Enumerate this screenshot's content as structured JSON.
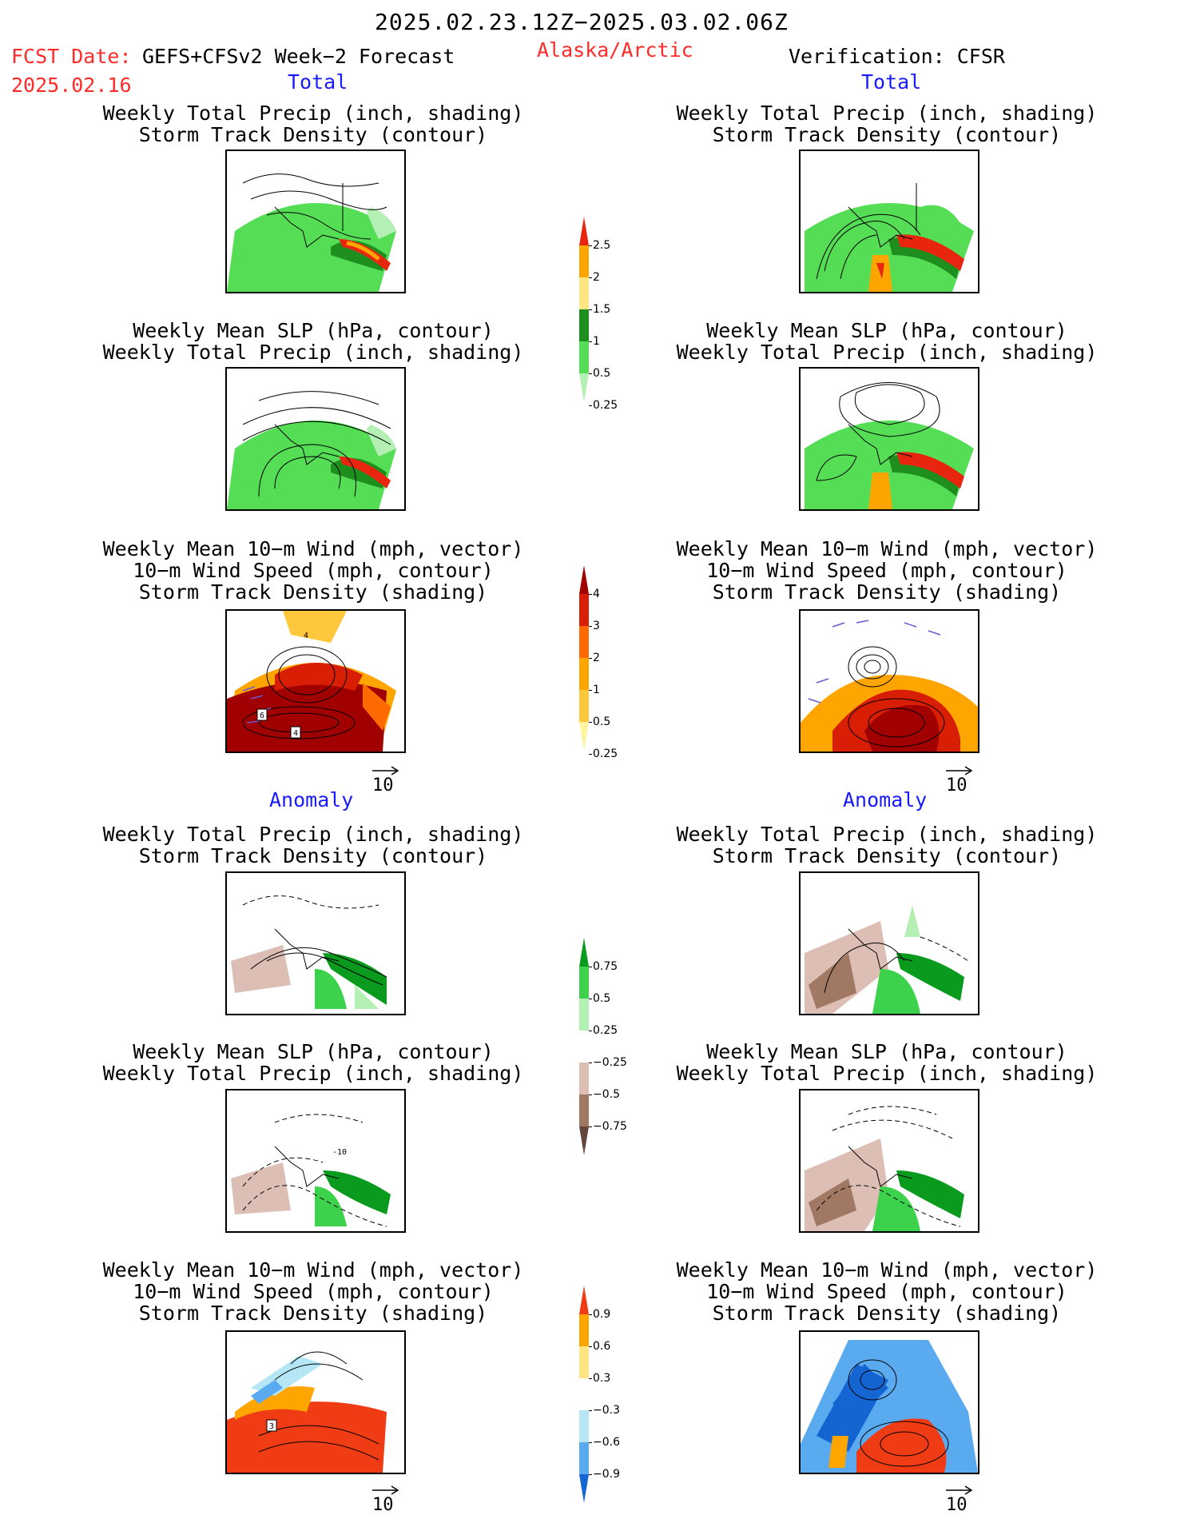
{
  "header": {
    "date_range": "2025.02.23.12Z−2025.03.02.06Z",
    "fcst_label": "FCST Date:",
    "fcst_model": "GEFS+CFSv2 Week−2 Forecast",
    "fcst_date": "2025.02.16",
    "region": "Alaska/Arctic",
    "verification": "Verification: CFSR"
  },
  "sections": {
    "total_left": "Total",
    "total_right": "Total",
    "anomaly_left": "Anomaly",
    "anomaly_right": "Anomaly"
  },
  "panel_titles": {
    "precip_storm": [
      "Weekly Total Precip (inch, shading)",
      "Storm Track Density (contour)"
    ],
    "slp_precip": [
      "Weekly Mean SLP (hPa, contour)",
      "Weekly Total Precip (inch, shading)"
    ],
    "wind_storm": [
      "Weekly Mean 10−m Wind (mph, vector)",
      "10−m Wind Speed (mph, contour)",
      "Storm Track Density (shading)"
    ]
  },
  "map_labels": {
    "wind_total_fcst_a": "4",
    "wind_total_fcst_b": "6",
    "wind_total_fcst_c": "4",
    "wind_anom_fcst": "3",
    "slp_anom_fcst": "-10"
  },
  "vector_ref": "10",
  "colorbars": {
    "precip_total": {
      "labels": [
        "2.5",
        "2",
        "1.5",
        "1",
        "0.5",
        "0.25"
      ],
      "colors": [
        "#e8260f",
        "#ffa500",
        "#ffe680",
        "#1e8f1e",
        "#55dd55",
        "#b4f0b4"
      ]
    },
    "storm_total": {
      "labels": [
        "4",
        "3",
        "2",
        "1",
        "0.5",
        "0.25"
      ],
      "colors": [
        "#a00000",
        "#d81e05",
        "#ff6a00",
        "#ffa500",
        "#ffc83c",
        "#fff5a0"
      ]
    },
    "precip_anom": {
      "labels": [
        "0.75",
        "0.5",
        "0.25",
        "−0.25",
        "−0.5",
        "−0.75"
      ],
      "colors": [
        "#0a9a1e",
        "#3cd24b",
        "#b4f0b4",
        "#ffffff",
        "#dcbeb4",
        "#a07864",
        "#64463c"
      ]
    },
    "storm_anom": {
      "labels": [
        "0.9",
        "0.6",
        "0.3",
        "−0.3",
        "−0.6",
        "−0.9"
      ],
      "colors": [
        "#f03c14",
        "#ffa500",
        "#ffe680",
        "#ffffff",
        "#b4e6f5",
        "#5aaaf0",
        "#1464d2"
      ]
    }
  }
}
